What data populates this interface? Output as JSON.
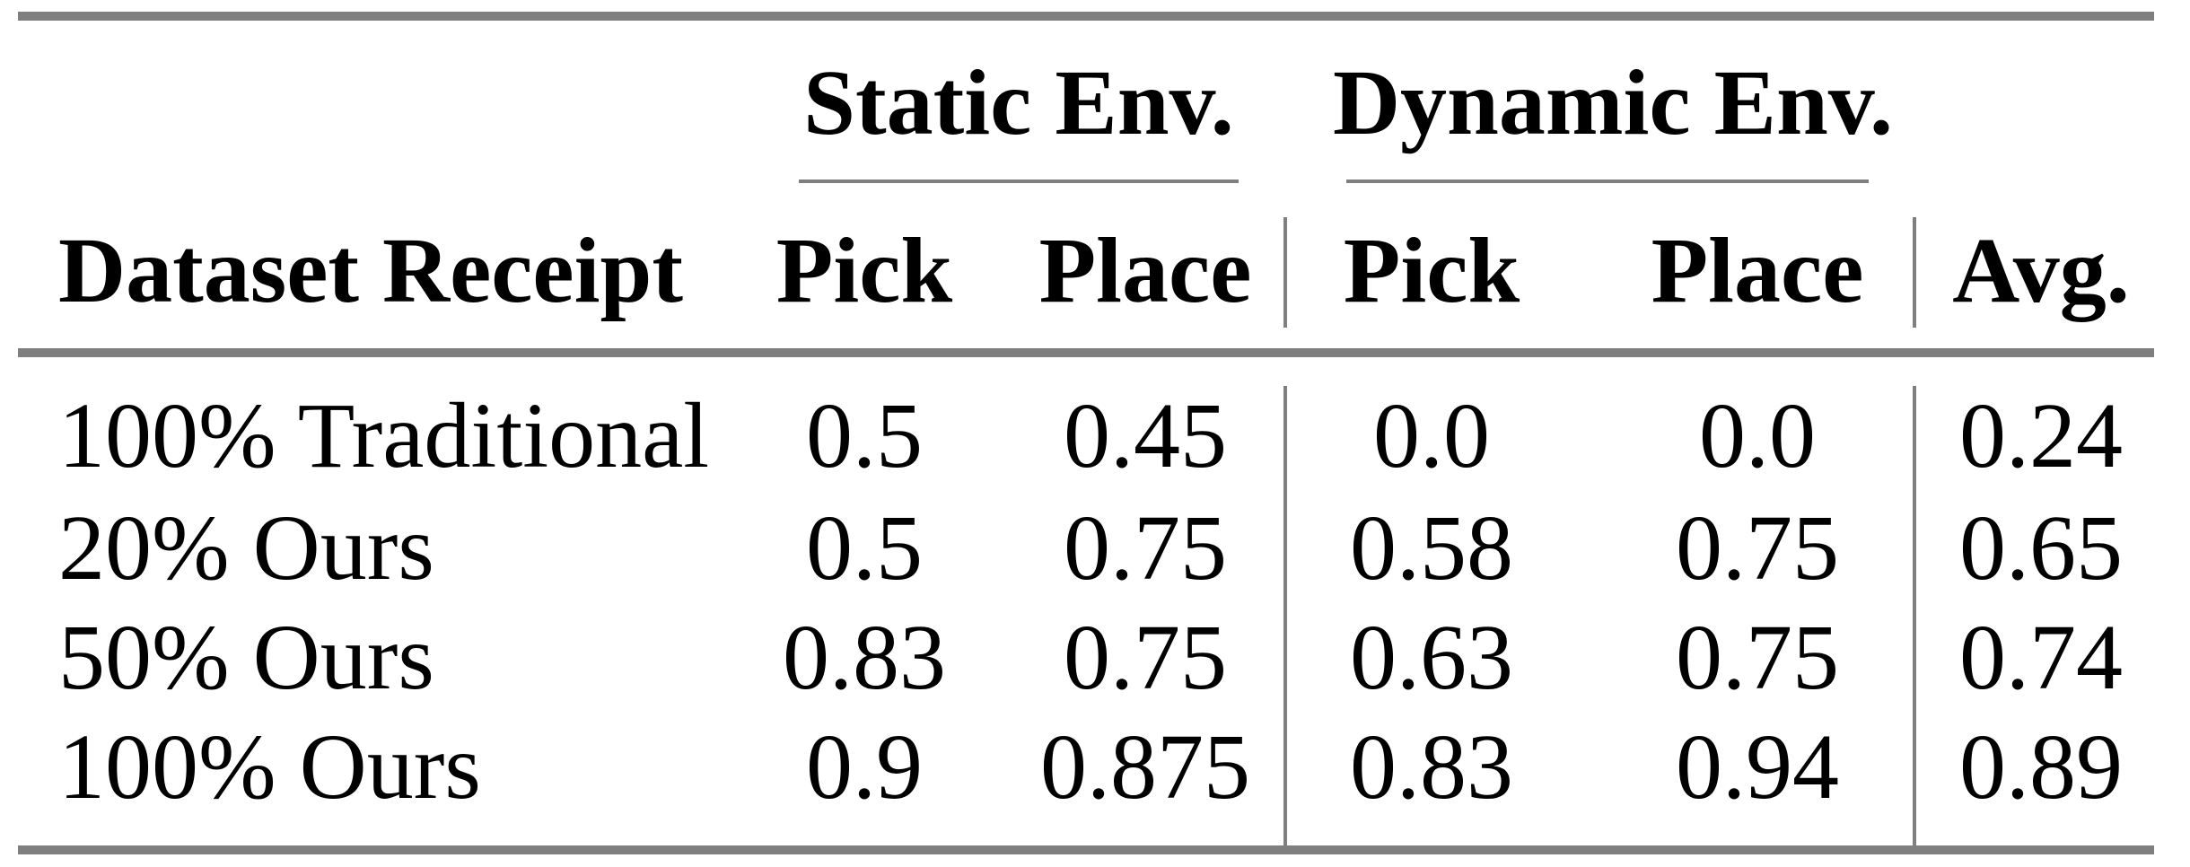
{
  "figure_type": "paper-results-table",
  "table": {
    "groups": [
      {
        "label": "Static Env."
      },
      {
        "label": "Dynamic Env."
      }
    ],
    "row_header_label": "Dataset Receipt",
    "columns": [
      "Pick",
      "Place",
      "Pick",
      "Place",
      "Avg."
    ],
    "rows": [
      {
        "label": "100% Traditional",
        "values": [
          "0.5",
          "0.45",
          "0.0",
          "0.0",
          "0.24"
        ]
      },
      {
        "label": "20% Ours",
        "values": [
          "0.5",
          "0.75",
          "0.58",
          "0.75",
          "0.65"
        ]
      },
      {
        "label": "50% Ours",
        "values": [
          "0.83",
          "0.75",
          "0.63",
          "0.75",
          "0.74"
        ]
      },
      {
        "label": "100% Ours",
        "values": [
          "0.9",
          "0.875",
          "0.83",
          "0.94",
          "0.89"
        ]
      }
    ]
  },
  "chart_data": {
    "type": "table",
    "columns": [
      "Dataset Receipt",
      "Static Env. Pick",
      "Static Env. Place",
      "Dynamic Env. Pick",
      "Dynamic Env. Place",
      "Avg."
    ],
    "rows": [
      [
        "100% Traditional",
        0.5,
        0.45,
        0.0,
        0.0,
        0.24
      ],
      [
        "20% Ours",
        0.5,
        0.75,
        0.58,
        0.75,
        0.65
      ],
      [
        "50% Ours",
        0.83,
        0.75,
        0.63,
        0.75,
        0.74
      ],
      [
        "100% Ours",
        0.9,
        0.875,
        0.83,
        0.94,
        0.89
      ]
    ]
  },
  "colors": {
    "rule_gray": "#7f7f7f",
    "text": "#000000",
    "background": "#ffffff"
  }
}
